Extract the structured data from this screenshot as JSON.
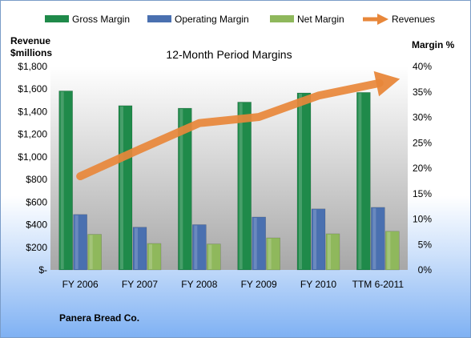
{
  "chart_data": {
    "type": "bar",
    "title": "12-Month Period Margins",
    "ylabel_left": [
      "Revenue",
      "$millions"
    ],
    "ylabel_right": "Margin %",
    "footer": "Panera Bread Co.",
    "categories": [
      "FY 2006",
      "FY 2007",
      "FY 2008",
      "FY 2009",
      "FY 2010",
      "TTM 6-2011"
    ],
    "left_axis": {
      "range": [
        0,
        1800
      ],
      "ticks": [
        0,
        200,
        400,
        600,
        800,
        1000,
        1200,
        1400,
        1600,
        1800
      ],
      "tick_labels": [
        "$-",
        "$200",
        "$400",
        "$600",
        "$800",
        "$1,000",
        "$1,200",
        "$1,400",
        "$1,600",
        "$1,800"
      ]
    },
    "right_axis": {
      "range": [
        0,
        40
      ],
      "ticks": [
        0,
        5,
        10,
        15,
        20,
        25,
        30,
        35,
        40
      ],
      "tick_labels": [
        "0%",
        "5%",
        "10%",
        "15%",
        "20%",
        "25%",
        "30%",
        "35%",
        "40%"
      ]
    },
    "series": [
      {
        "name": "Gross Margin",
        "axis": "right",
        "kind": "bar",
        "color": "#1f8a4a",
        "values": [
          35.2,
          32.3,
          31.8,
          33.0,
          34.8,
          34.9
        ]
      },
      {
        "name": "Operating Margin",
        "axis": "right",
        "kind": "bar",
        "color": "#4a70b0",
        "values": [
          10.9,
          8.4,
          8.9,
          10.4,
          12.0,
          12.3
        ]
      },
      {
        "name": "Net Margin",
        "axis": "right",
        "kind": "bar",
        "color": "#8fb85c",
        "values": [
          7.0,
          5.2,
          5.1,
          6.3,
          7.1,
          7.6
        ]
      },
      {
        "name": "Revenues",
        "axis": "left",
        "kind": "arrow-line",
        "color": "#e8873a",
        "values": [
          829,
          1067,
          1299,
          1353,
          1542,
          1650
        ]
      }
    ],
    "grid": false,
    "legend_position": "top"
  }
}
